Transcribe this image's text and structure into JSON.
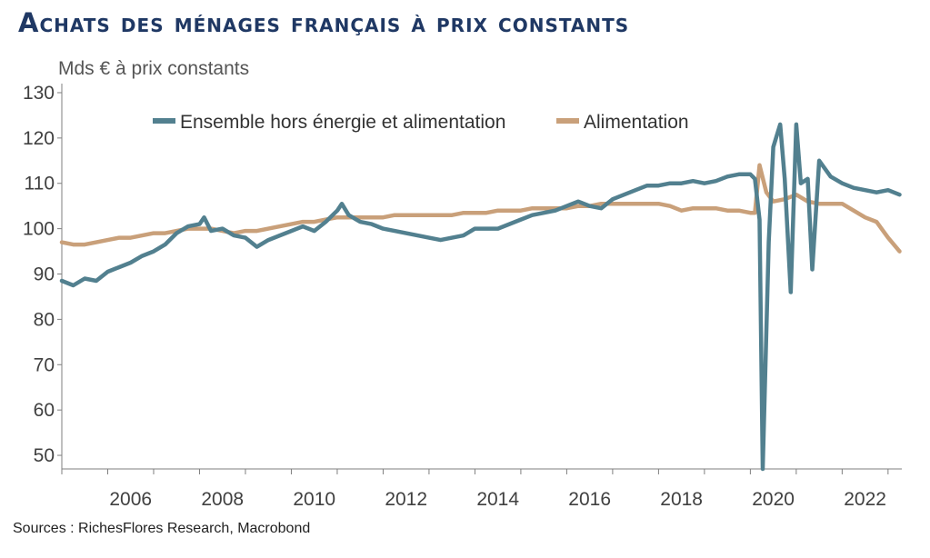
{
  "title": "Achats des ménages français à prix constants",
  "unit_label": "Mds € à prix constants",
  "source": "Sources : RichesFlores Research, Macrobond",
  "colors": {
    "ensemble": "#52808f",
    "alimentation": "#c9a07a",
    "axis": "#7f7f7f"
  },
  "chart_data": {
    "type": "line",
    "title": "Achats des ménages français à prix constants",
    "ylabel": "Mds € à prix constants",
    "ylim": [
      47,
      132
    ],
    "xlim": [
      2005.0,
      2023.3
    ],
    "y_ticks": [
      50,
      60,
      70,
      80,
      90,
      100,
      110,
      120,
      130
    ],
    "x_ticks": [
      2006,
      2008,
      2010,
      2012,
      2014,
      2016,
      2018,
      2020,
      2022
    ],
    "grid": false,
    "legend_position": "top",
    "series": [
      {
        "name": "Ensemble hors énergie et alimentation",
        "points": [
          [
            2005.0,
            88.5
          ],
          [
            2005.25,
            87.5
          ],
          [
            2005.5,
            89
          ],
          [
            2005.75,
            88.5
          ],
          [
            2006.0,
            90.5
          ],
          [
            2006.25,
            91.5
          ],
          [
            2006.5,
            92.5
          ],
          [
            2006.75,
            94
          ],
          [
            2007.0,
            95
          ],
          [
            2007.25,
            96.5
          ],
          [
            2007.5,
            99
          ],
          [
            2007.75,
            100.5
          ],
          [
            2008.0,
            101
          ],
          [
            2008.1,
            102.5
          ],
          [
            2008.25,
            99.5
          ],
          [
            2008.5,
            100
          ],
          [
            2008.75,
            98.5
          ],
          [
            2009.0,
            98
          ],
          [
            2009.25,
            96
          ],
          [
            2009.5,
            97.5
          ],
          [
            2009.75,
            98.5
          ],
          [
            2010.0,
            99.5
          ],
          [
            2010.25,
            100.5
          ],
          [
            2010.5,
            99.5
          ],
          [
            2010.75,
            101.5
          ],
          [
            2011.0,
            104
          ],
          [
            2011.1,
            105.5
          ],
          [
            2011.25,
            103
          ],
          [
            2011.5,
            101.5
          ],
          [
            2011.75,
            101
          ],
          [
            2012.0,
            100
          ],
          [
            2012.25,
            99.5
          ],
          [
            2012.5,
            99
          ],
          [
            2012.75,
            98.5
          ],
          [
            2013.0,
            98
          ],
          [
            2013.25,
            97.5
          ],
          [
            2013.5,
            98
          ],
          [
            2013.75,
            98.5
          ],
          [
            2014.0,
            100
          ],
          [
            2014.25,
            100
          ],
          [
            2014.5,
            100
          ],
          [
            2014.75,
            101
          ],
          [
            2015.0,
            102
          ],
          [
            2015.25,
            103
          ],
          [
            2015.5,
            103.5
          ],
          [
            2015.75,
            104
          ],
          [
            2016.0,
            105
          ],
          [
            2016.25,
            106
          ],
          [
            2016.5,
            105
          ],
          [
            2016.75,
            104.5
          ],
          [
            2017.0,
            106.5
          ],
          [
            2017.25,
            107.5
          ],
          [
            2017.5,
            108.5
          ],
          [
            2017.75,
            109.5
          ],
          [
            2018.0,
            109.5
          ],
          [
            2018.25,
            110
          ],
          [
            2018.5,
            110
          ],
          [
            2018.75,
            110.5
          ],
          [
            2019.0,
            110
          ],
          [
            2019.25,
            110.5
          ],
          [
            2019.5,
            111.5
          ],
          [
            2019.75,
            112
          ],
          [
            2020.0,
            112
          ],
          [
            2020.1,
            111
          ],
          [
            2020.2,
            102
          ],
          [
            2020.27,
            47
          ],
          [
            2020.4,
            97
          ],
          [
            2020.5,
            118
          ],
          [
            2020.65,
            123
          ],
          [
            2020.75,
            111
          ],
          [
            2020.88,
            86
          ],
          [
            2021.0,
            123
          ],
          [
            2021.1,
            110
          ],
          [
            2021.25,
            111
          ],
          [
            2021.35,
            91
          ],
          [
            2021.5,
            115
          ],
          [
            2021.75,
            111.5
          ],
          [
            2022.0,
            110
          ],
          [
            2022.25,
            109
          ],
          [
            2022.5,
            108.5
          ],
          [
            2022.75,
            108
          ],
          [
            2023.0,
            108.5
          ],
          [
            2023.25,
            107.5
          ]
        ]
      },
      {
        "name": "Alimentation",
        "points": [
          [
            2005.0,
            97
          ],
          [
            2005.25,
            96.5
          ],
          [
            2005.5,
            96.5
          ],
          [
            2005.75,
            97
          ],
          [
            2006.0,
            97.5
          ],
          [
            2006.25,
            98
          ],
          [
            2006.5,
            98
          ],
          [
            2006.75,
            98.5
          ],
          [
            2007.0,
            99
          ],
          [
            2007.25,
            99
          ],
          [
            2007.5,
            99.5
          ],
          [
            2007.75,
            100
          ],
          [
            2008.0,
            100
          ],
          [
            2008.25,
            100
          ],
          [
            2008.5,
            99.5
          ],
          [
            2008.75,
            99
          ],
          [
            2009.0,
            99.5
          ],
          [
            2009.25,
            99.5
          ],
          [
            2009.5,
            100
          ],
          [
            2009.75,
            100.5
          ],
          [
            2010.0,
            101
          ],
          [
            2010.25,
            101.5
          ],
          [
            2010.5,
            101.5
          ],
          [
            2010.75,
            102
          ],
          [
            2011.0,
            102.5
          ],
          [
            2011.25,
            102.5
          ],
          [
            2011.5,
            102.5
          ],
          [
            2011.75,
            102.5
          ],
          [
            2012.0,
            102.5
          ],
          [
            2012.25,
            103
          ],
          [
            2012.5,
            103
          ],
          [
            2012.75,
            103
          ],
          [
            2013.0,
            103
          ],
          [
            2013.25,
            103
          ],
          [
            2013.5,
            103
          ],
          [
            2013.75,
            103.5
          ],
          [
            2014.0,
            103.5
          ],
          [
            2014.25,
            103.5
          ],
          [
            2014.5,
            104
          ],
          [
            2014.75,
            104
          ],
          [
            2015.0,
            104
          ],
          [
            2015.25,
            104.5
          ],
          [
            2015.5,
            104.5
          ],
          [
            2015.75,
            104.5
          ],
          [
            2016.0,
            104.5
          ],
          [
            2016.25,
            105
          ],
          [
            2016.5,
            105
          ],
          [
            2016.75,
            105.5
          ],
          [
            2017.0,
            105.5
          ],
          [
            2017.25,
            105.5
          ],
          [
            2017.5,
            105.5
          ],
          [
            2017.75,
            105.5
          ],
          [
            2018.0,
            105.5
          ],
          [
            2018.25,
            105
          ],
          [
            2018.5,
            104
          ],
          [
            2018.75,
            104.5
          ],
          [
            2019.0,
            104.5
          ],
          [
            2019.25,
            104.5
          ],
          [
            2019.5,
            104
          ],
          [
            2019.75,
            104
          ],
          [
            2020.0,
            103.5
          ],
          [
            2020.1,
            103.5
          ],
          [
            2020.2,
            114
          ],
          [
            2020.35,
            108
          ],
          [
            2020.5,
            106
          ],
          [
            2020.75,
            106.5
          ],
          [
            2021.0,
            107.5
          ],
          [
            2021.25,
            106
          ],
          [
            2021.5,
            105.5
          ],
          [
            2021.75,
            105.5
          ],
          [
            2022.0,
            105.5
          ],
          [
            2022.25,
            104
          ],
          [
            2022.5,
            102.5
          ],
          [
            2022.75,
            101.5
          ],
          [
            2023.0,
            98
          ],
          [
            2023.25,
            95
          ]
        ]
      }
    ]
  }
}
